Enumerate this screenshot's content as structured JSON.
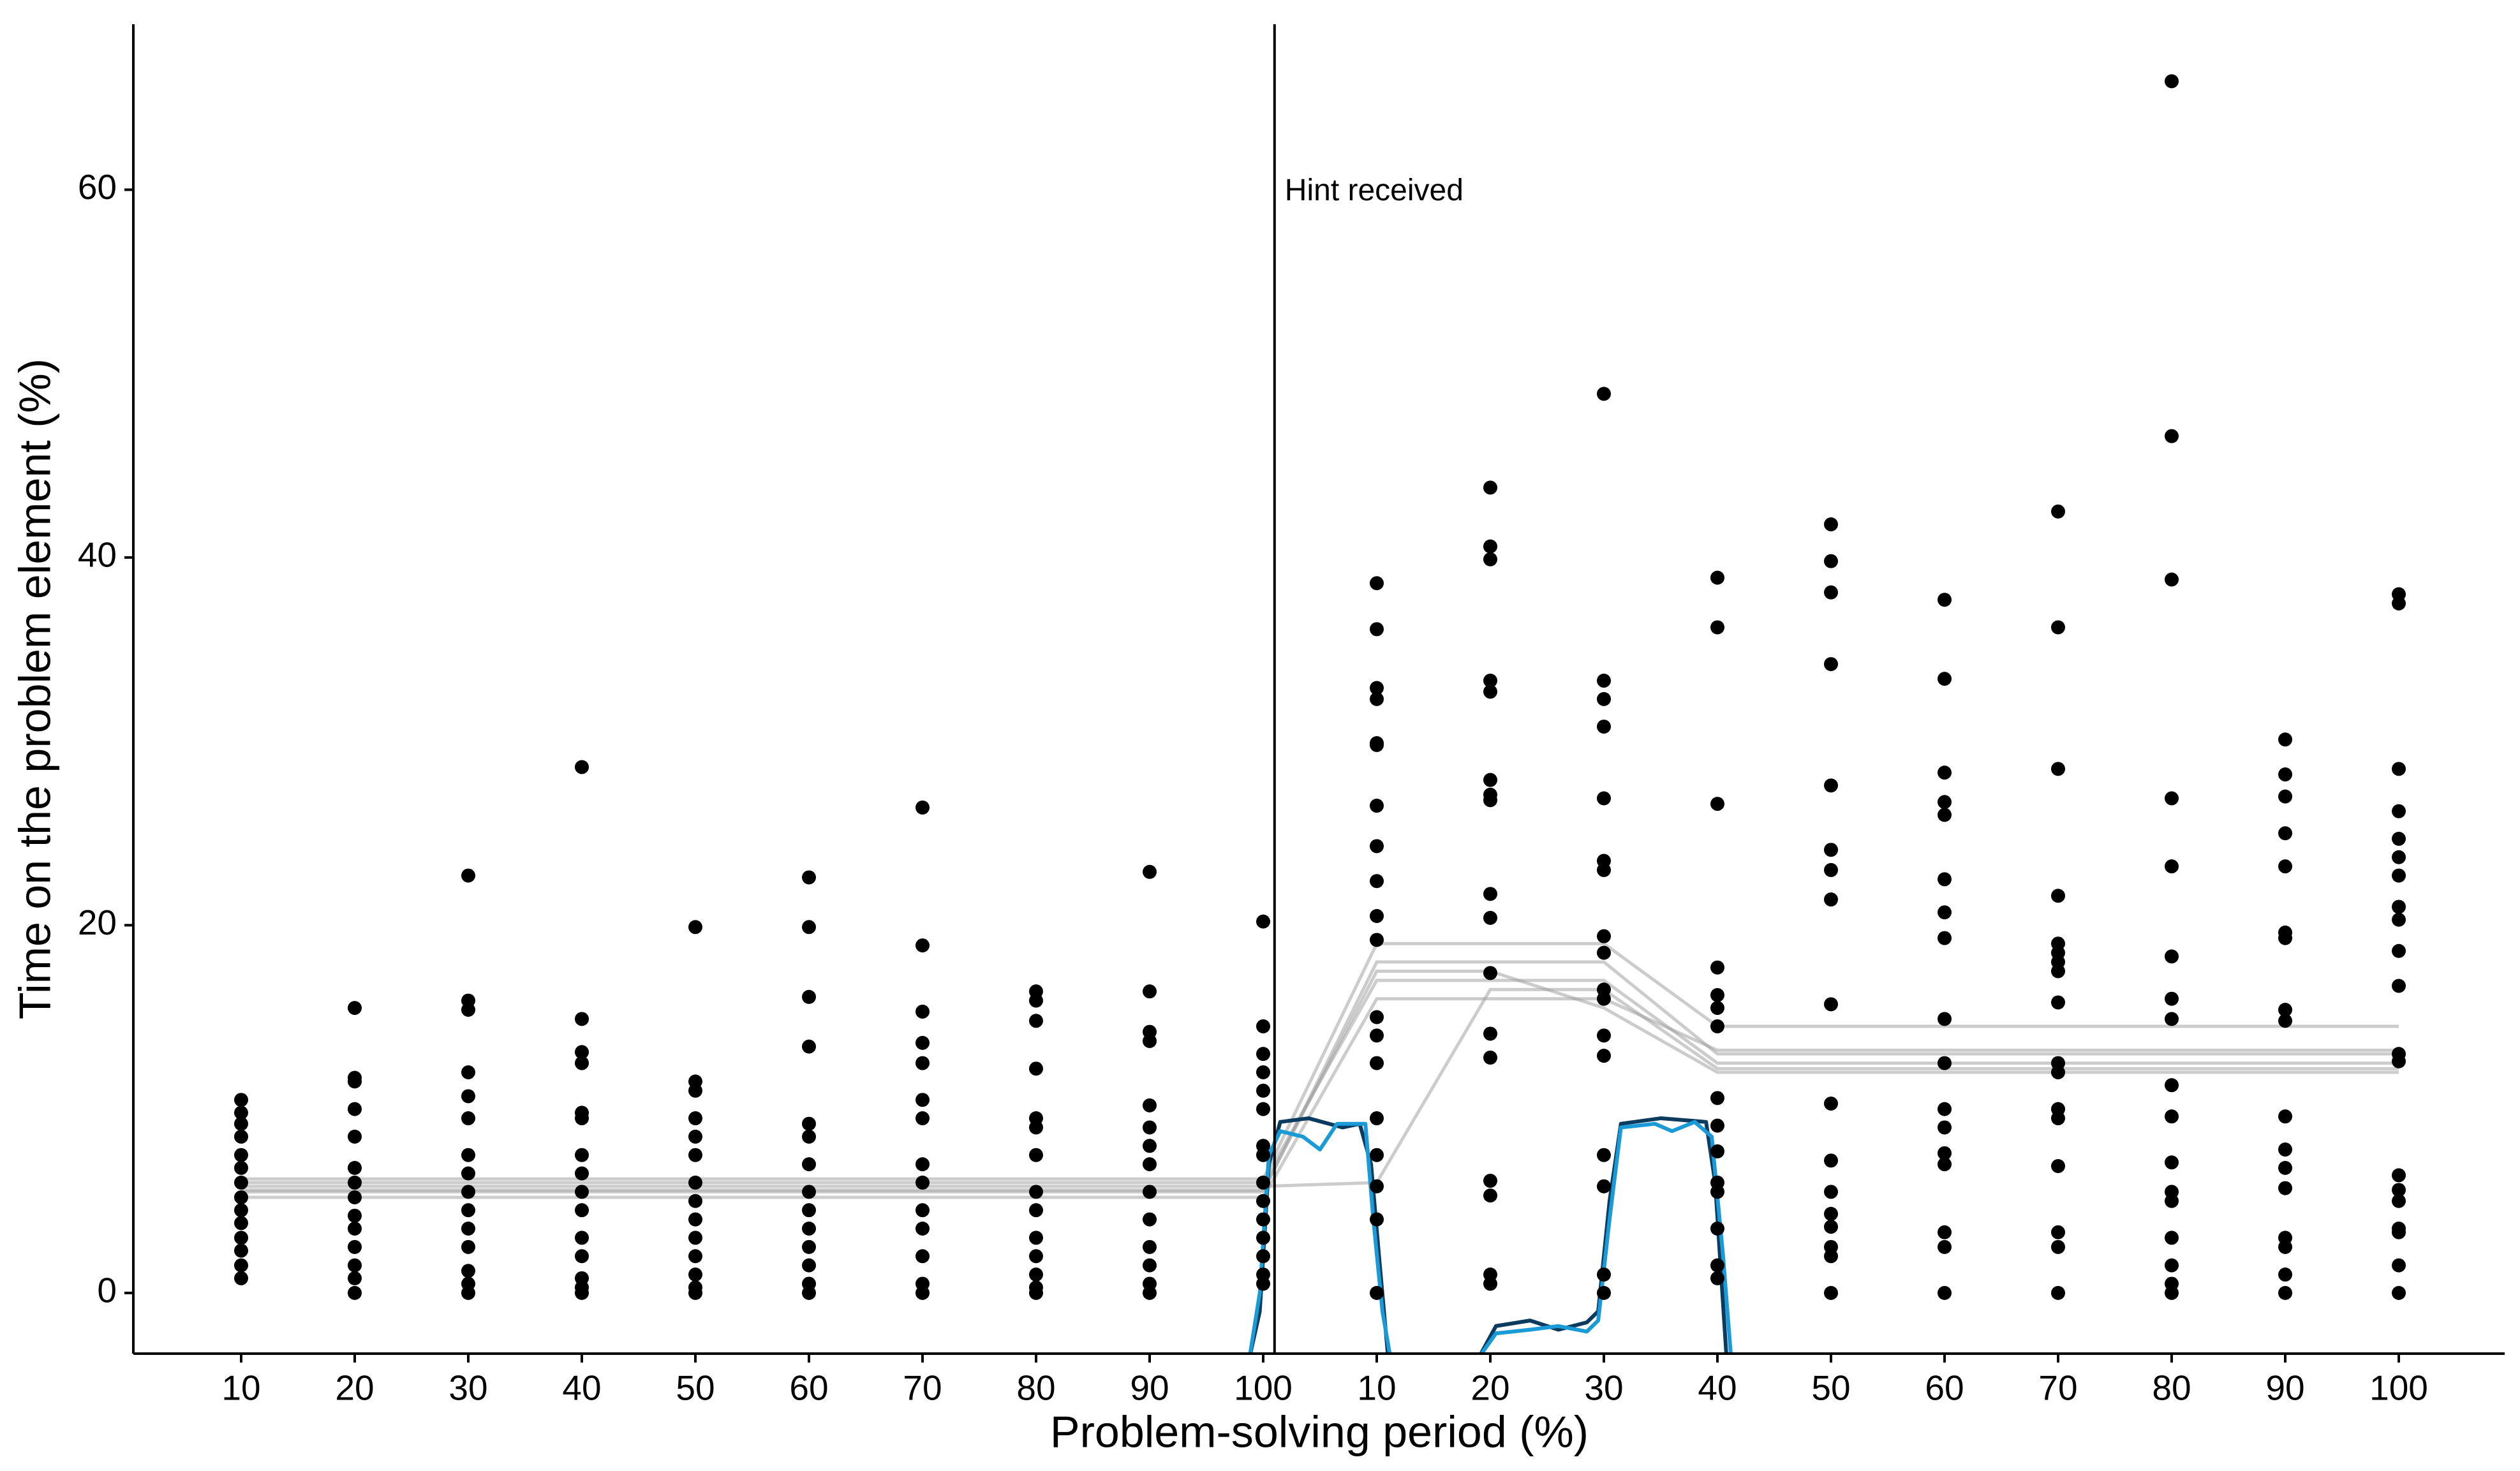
{
  "chart_data": {
    "type": "scatter",
    "x_label": "Problem-solving period (%)",
    "y_label": "Time on the problem element (%)",
    "annotation": "Hint received",
    "hint_line_position": 10.1,
    "categories": [
      10,
      20,
      30,
      40,
      50,
      60,
      70,
      80,
      90,
      100,
      10,
      20,
      30,
      40,
      50,
      60,
      70,
      80,
      90,
      100
    ],
    "point_color": "#000000",
    "values": [
      [
        10.5,
        9.8,
        9.2,
        8.5,
        7.5,
        6.8,
        6,
        5.2,
        4.5,
        3.8,
        3,
        2.3,
        1.5,
        0.8
      ],
      [
        15.5,
        11.7,
        11.5,
        10,
        8.5,
        6.8,
        6,
        5.2,
        4.2,
        3.5,
        2.5,
        1.5,
        0.8,
        0
      ],
      [
        22.7,
        15.9,
        15.4,
        12,
        10.7,
        9.5,
        7.5,
        6.5,
        5.5,
        4.5,
        3.5,
        2.5,
        1.2,
        0.5,
        0
      ],
      [
        28.6,
        14.9,
        13.1,
        12.5,
        9.8,
        9.5,
        7.5,
        6.5,
        5.5,
        4.5,
        3,
        2,
        0.8,
        0.3,
        0
      ],
      [
        19.9,
        11.5,
        11,
        9.5,
        8.5,
        7.5,
        6,
        5,
        4,
        3,
        2,
        1,
        0.3,
        0
      ],
      [
        22.6,
        19.9,
        16.1,
        13.4,
        9.2,
        8.5,
        7,
        5.5,
        4.5,
        3.5,
        2.5,
        1.5,
        0.5,
        0
      ],
      [
        26.4,
        18.9,
        15.3,
        13.6,
        12.5,
        10.5,
        9.5,
        7,
        6,
        4.5,
        3.5,
        2,
        0.5,
        0
      ],
      [
        16.4,
        15.9,
        14.8,
        12.2,
        9.5,
        9,
        7.5,
        5.5,
        4.5,
        3,
        2,
        1,
        0.3,
        0
      ],
      [
        22.9,
        16.4,
        14.2,
        13.7,
        10.2,
        9,
        8,
        7,
        5.5,
        4,
        2.5,
        1.5,
        0.5,
        0
      ],
      [
        20.2,
        14.5,
        13,
        12,
        11,
        10,
        8,
        7.5,
        6,
        5,
        4,
        3,
        2,
        1,
        0.5
      ],
      [
        38.6,
        36.1,
        32.9,
        32.3,
        29.9,
        29.8,
        26.5,
        24.3,
        22.4,
        20.5,
        19.2,
        15,
        14,
        12.5,
        9.5,
        7.5,
        5.8,
        4,
        0
      ],
      [
        43.8,
        40.6,
        39.9,
        33.3,
        32.7,
        27.9,
        27.1,
        26.8,
        21.7,
        20.4,
        17.4,
        14.1,
        12.8,
        6.1,
        5.3,
        1,
        0.5
      ],
      [
        48.9,
        33.3,
        32.3,
        30.8,
        26.9,
        23.5,
        23,
        19.4,
        18.5,
        16.5,
        16,
        14,
        12.9,
        7.5,
        5.8,
        1,
        0
      ],
      [
        38.9,
        36.2,
        26.6,
        17.7,
        16.2,
        15.5,
        14.5,
        10.6,
        9.1,
        7.7,
        6,
        5.5,
        3.5,
        1.5,
        0.8
      ],
      [
        41.8,
        39.8,
        38.1,
        34.2,
        27.6,
        24.1,
        23,
        21.4,
        15.7,
        10.3,
        7.2,
        5.5,
        4.3,
        3.6,
        2.5,
        2,
        0
      ],
      [
        37.7,
        33.4,
        28.3,
        26.7,
        26,
        22.5,
        20.7,
        19.3,
        14.9,
        12.5,
        10,
        9,
        7.6,
        7,
        3.3,
        2.5,
        0
      ],
      [
        42.5,
        36.2,
        28.5,
        21.6,
        19,
        18.5,
        18,
        17.5,
        15.8,
        12.5,
        12,
        10,
        9.5,
        6.9,
        3.3,
        2.5,
        0
      ],
      [
        65.9,
        46.6,
        38.8,
        26.9,
        23.2,
        18.3,
        16,
        14.9,
        11.3,
        9.6,
        7.1,
        5.5,
        5,
        3,
        1.5,
        0.5,
        0
      ],
      [
        30.1,
        28.2,
        27,
        25,
        23.2,
        19.6,
        19.3,
        15.4,
        14.8,
        9.6,
        7.8,
        6.8,
        5.7,
        3,
        2.5,
        1,
        0
      ],
      [
        38,
        37.5,
        28.5,
        26.2,
        24.7,
        23.7,
        22.7,
        21,
        20.3,
        18.6,
        16.7,
        13,
        12.6,
        6.4,
        5.6,
        5,
        3.5,
        3.3,
        1.5,
        0
      ]
    ],
    "step_line_color": "#9a9a9a",
    "step_lines": [
      [
        5.5,
        5.5,
        5.5,
        5.5,
        5.5,
        5.5,
        5.5,
        5.5,
        5.5,
        5.5,
        18,
        18,
        18,
        13,
        13,
        13,
        13,
        13,
        13,
        13
      ],
      [
        6,
        6,
        6,
        6,
        6,
        6,
        6,
        6,
        6,
        6,
        17,
        17,
        17,
        12.5,
        12.5,
        12.5,
        12.5,
        12.5,
        12.5,
        12.5
      ],
      [
        5.8,
        5.8,
        5.8,
        5.8,
        5.8,
        5.8,
        5.8,
        5.8,
        5.8,
        5.8,
        6,
        16.5,
        16.5,
        12.2,
        12.2,
        12.2,
        12.2,
        12.2,
        12.2,
        12.2
      ],
      [
        6.2,
        6.2,
        6.2,
        6.2,
        6.2,
        6.2,
        6.2,
        6.2,
        6.2,
        6.2,
        19,
        19,
        19,
        14.5,
        14.5,
        14.5,
        14.5,
        14.5,
        14.5,
        14.5
      ],
      [
        5.2,
        5.2,
        5.2,
        5.2,
        5.2,
        5.2,
        5.2,
        5.2,
        5.2,
        5.2,
        16,
        16,
        16,
        13.2,
        13.2,
        13.2,
        13.2,
        13.2,
        13.2,
        13.2
      ],
      [
        5.6,
        5.6,
        5.6,
        5.6,
        5.6,
        5.6,
        5.6,
        5.6,
        5.6,
        5.6,
        17.5,
        17.5,
        15.5,
        12,
        12,
        12,
        12,
        12,
        12,
        12
      ]
    ],
    "density_curves": [
      {
        "color": "#0b3b5f",
        "x": [
          9.88,
          9.97,
          10.05,
          10.15,
          10.4,
          10.7,
          10.85,
          10.95,
          11.02,
          11.1,
          11.9,
          12.05,
          12.35,
          12.6,
          12.85,
          12.95,
          13.05,
          13.15,
          13.5,
          13.9,
          13.98,
          14.08
        ],
        "values": [
          -3.5,
          -1,
          7,
          9.3,
          9.5,
          9,
          9.2,
          7,
          2,
          -3.5,
          -3.5,
          -1.8,
          -1.5,
          -2,
          -1.6,
          -1,
          5,
          9.2,
          9.5,
          9.3,
          6,
          -3.5
        ]
      },
      {
        "color": "#1a9bd7",
        "x": [
          9.88,
          9.97,
          10.05,
          10.15,
          10.35,
          10.5,
          10.65,
          10.9,
          10.97,
          11.05,
          11.12,
          11.9,
          12.05,
          12.35,
          12.6,
          12.85,
          12.95,
          13.05,
          13.15,
          13.45,
          13.6,
          13.8,
          13.95,
          14.05,
          14.12
        ],
        "values": [
          -3.5,
          0,
          7.5,
          8.8,
          8.5,
          7.8,
          9.2,
          9.2,
          4,
          -1,
          -3.5,
          -3.5,
          -2.2,
          -2,
          -1.8,
          -2.1,
          -1.5,
          4,
          9,
          9.2,
          8.8,
          9.3,
          8.5,
          2,
          -3.5
        ]
      }
    ],
    "ylim": [
      -3.3,
      69
    ],
    "yticks": [
      0,
      20,
      40,
      60
    ],
    "grid": false
  }
}
